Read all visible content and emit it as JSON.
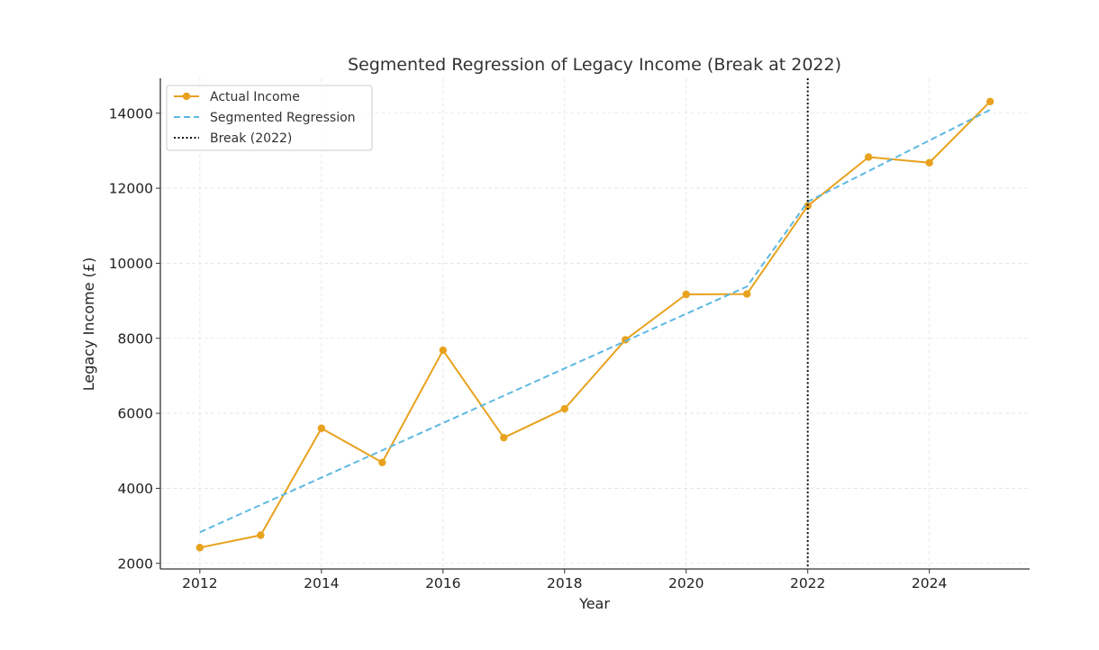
{
  "chart_data": {
    "type": "line",
    "title": "Segmented Regression of Legacy Income (Break at 2022)",
    "xlabel": "Year",
    "ylabel": "Legacy Income (£)",
    "xlim": [
      2011.35,
      2025.65
    ],
    "ylim": [
      1850,
      14930
    ],
    "x_ticks": [
      2012,
      2014,
      2016,
      2018,
      2020,
      2022,
      2024
    ],
    "y_ticks": [
      2000,
      4000,
      6000,
      8000,
      10000,
      12000,
      14000
    ],
    "grid": true,
    "legend_position": "top-left",
    "series": [
      {
        "name": "Actual Income",
        "color": "#E8A21E",
        "style": "solid-with-markers",
        "x": [
          2012,
          2013,
          2014,
          2015,
          2016,
          2017,
          2018,
          2019,
          2020,
          2021,
          2022,
          2023,
          2024,
          2025
        ],
        "values": [
          2420,
          2750,
          5600,
          4690,
          7680,
          5350,
          6120,
          7960,
          9170,
          9180,
          11530,
          12830,
          12680,
          14310
        ]
      },
      {
        "name": "Segmented Regression",
        "color": "#5DB8E2",
        "style": "dashed",
        "x": [
          2012,
          2021,
          2022,
          2025
        ],
        "values": [
          2830,
          9380,
          11640,
          14090
        ]
      }
    ],
    "vertical_lines": [
      {
        "name": "Break (2022)",
        "x": 2022,
        "color": "#111111",
        "style": "dotted"
      }
    ]
  }
}
